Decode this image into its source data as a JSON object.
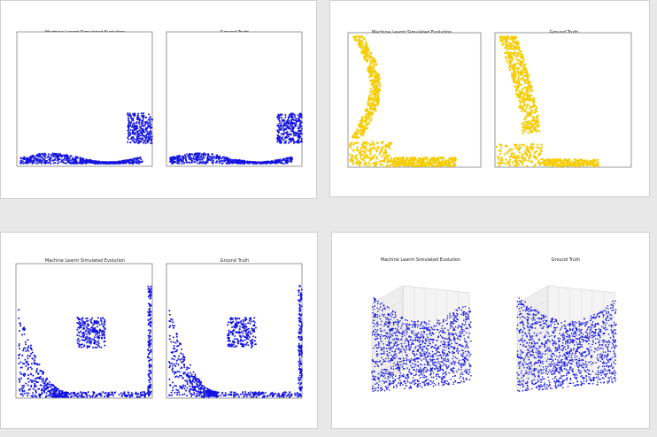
{
  "panels": [
    {
      "id": "fig-dambreak-obstacle",
      "left_title": "Machine Learnt Simulated Evolution",
      "right_title": "Ground Truth"
    },
    {
      "id": "fig-water-wave-ramp",
      "left_title": "Machine Learnt Simulated Evolution",
      "right_title": "Ground Truth"
    },
    {
      "id": "fig-sand-box",
      "left_title": "Machine Learnt Simulated Evolution",
      "right_title": "Ground Truth"
    },
    {
      "id": "fig-3d-fluid",
      "left_title": "Machine Learnt Simulated Evolution",
      "right_title": "Ground Truth"
    }
  ],
  "colors": {
    "blue": "#1414e0",
    "yellow": "#f5cc00"
  }
}
